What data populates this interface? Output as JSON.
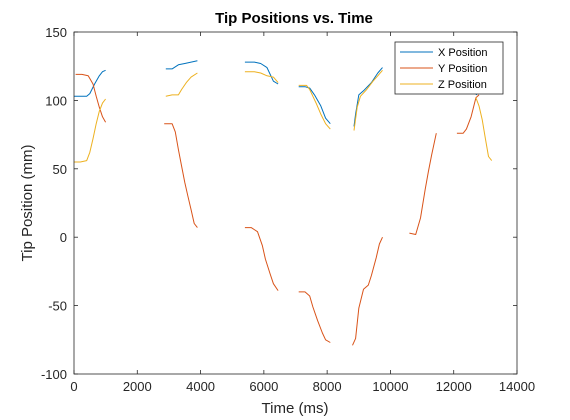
{
  "chart_data": {
    "type": "line",
    "title": "Tip Positions vs. Time",
    "xlabel": "Time (ms)",
    "ylabel": "Tip Position (mm)",
    "xlim": [
      0,
      14000
    ],
    "ylim": [
      -100,
      150
    ],
    "xticks": [
      0,
      2000,
      4000,
      6000,
      8000,
      10000,
      12000,
      14000
    ],
    "yticks": [
      -100,
      -50,
      0,
      50,
      100,
      150
    ],
    "grid": false,
    "legend_position": "top-right",
    "series": [
      {
        "name": "X Position",
        "color": "#0072BD",
        "segments": [
          [
            [
              0,
              103
            ],
            [
              200,
              103
            ],
            [
              400,
              103
            ],
            [
              500,
              105
            ],
            [
              650,
              112
            ],
            [
              800,
              118
            ],
            [
              900,
              121
            ],
            [
              1000,
              122
            ]
          ],
          [
            [
              2900,
              123
            ],
            [
              3100,
              123
            ],
            [
              3300,
              126
            ],
            [
              3500,
              127
            ],
            [
              3700,
              128
            ],
            [
              3900,
              129
            ]
          ],
          [
            [
              5400,
              128
            ],
            [
              5700,
              128
            ],
            [
              5900,
              127
            ],
            [
              6100,
              124
            ],
            [
              6300,
              114
            ],
            [
              6450,
              112
            ]
          ],
          [
            [
              7100,
              110
            ],
            [
              7300,
              110
            ],
            [
              7450,
              109
            ],
            [
              7600,
              104
            ],
            [
              7800,
              96
            ],
            [
              7950,
              87
            ],
            [
              8100,
              83
            ]
          ],
          [
            [
              8850,
              81
            ],
            [
              8900,
              90
            ],
            [
              9000,
              104
            ],
            [
              9150,
              107
            ],
            [
              9400,
              113
            ],
            [
              9600,
              120
            ],
            [
              9750,
              124
            ]
          ],
          [
            [
              12700,
              104
            ],
            [
              12800,
              106
            ],
            [
              13000,
              106
            ],
            [
              13150,
              105
            ]
          ]
        ]
      },
      {
        "name": "Y Position",
        "color": "#D95319",
        "segments": [
          [
            [
              50,
              119
            ],
            [
              250,
              119
            ],
            [
              450,
              118
            ],
            [
              600,
              112
            ],
            [
              700,
              103
            ],
            [
              800,
              95
            ],
            [
              900,
              88
            ],
            [
              1000,
              84
            ]
          ],
          [
            [
              2850,
              83
            ],
            [
              3100,
              83
            ],
            [
              3200,
              77
            ],
            [
              3300,
              64
            ],
            [
              3400,
              52
            ],
            [
              3500,
              40
            ],
            [
              3600,
              30
            ],
            [
              3700,
              20
            ],
            [
              3800,
              10
            ],
            [
              3900,
              7
            ]
          ],
          [
            [
              5400,
              7
            ],
            [
              5600,
              7
            ],
            [
              5800,
              4
            ],
            [
              5950,
              -6
            ],
            [
              6050,
              -16
            ],
            [
              6200,
              -27
            ],
            [
              6300,
              -34
            ],
            [
              6450,
              -39
            ]
          ],
          [
            [
              7100,
              -40
            ],
            [
              7300,
              -40
            ],
            [
              7450,
              -43
            ],
            [
              7550,
              -51
            ],
            [
              7700,
              -61
            ],
            [
              7850,
              -70
            ],
            [
              7950,
              -75
            ],
            [
              8100,
              -77
            ]
          ],
          [
            [
              8800,
              -79
            ],
            [
              8900,
              -74
            ],
            [
              9000,
              -52
            ],
            [
              9150,
              -38
            ],
            [
              9300,
              -35
            ],
            [
              9400,
              -28
            ],
            [
              9550,
              -15
            ],
            [
              9650,
              -5
            ],
            [
              9750,
              0
            ]
          ],
          [
            [
              10600,
              3
            ],
            [
              10800,
              2
            ],
            [
              10950,
              14
            ],
            [
              11100,
              35
            ],
            [
              11200,
              48
            ],
            [
              11300,
              60
            ],
            [
              11450,
              76
            ]
          ],
          [
            [
              12100,
              76
            ],
            [
              12300,
              76
            ],
            [
              12400,
              79
            ],
            [
              12550,
              88
            ],
            [
              12700,
              102
            ],
            [
              12800,
              104
            ]
          ]
        ]
      },
      {
        "name": "Z Position",
        "color": "#EDB120",
        "segments": [
          [
            [
              0,
              55
            ],
            [
              200,
              55
            ],
            [
              400,
              56
            ],
            [
              500,
              62
            ],
            [
              600,
              72
            ],
            [
              700,
              83
            ],
            [
              800,
              92
            ],
            [
              900,
              98
            ],
            [
              1000,
              101
            ]
          ],
          [
            [
              2900,
              103
            ],
            [
              3100,
              104
            ],
            [
              3300,
              104
            ],
            [
              3400,
              108
            ],
            [
              3550,
              113
            ],
            [
              3700,
              117
            ],
            [
              3900,
              120
            ]
          ],
          [
            [
              5400,
              121
            ],
            [
              5700,
              121
            ],
            [
              5900,
              120
            ],
            [
              6100,
              118
            ],
            [
              6300,
              117
            ],
            [
              6450,
              113
            ]
          ],
          [
            [
              7100,
              111
            ],
            [
              7350,
              111
            ],
            [
              7450,
              108
            ],
            [
              7550,
              103
            ],
            [
              7650,
              98
            ],
            [
              7800,
              90
            ],
            [
              7950,
              83
            ],
            [
              8100,
              79
            ]
          ],
          [
            [
              8850,
              78
            ],
            [
              8950,
              95
            ],
            [
              9050,
              103
            ],
            [
              9250,
              108
            ],
            [
              9450,
              114
            ],
            [
              9600,
              118
            ],
            [
              9750,
              122
            ]
          ],
          [
            [
              12700,
              102
            ],
            [
              12800,
              96
            ],
            [
              12900,
              86
            ],
            [
              13000,
              72
            ],
            [
              13100,
              59
            ],
            [
              13200,
              56
            ]
          ]
        ]
      }
    ]
  }
}
